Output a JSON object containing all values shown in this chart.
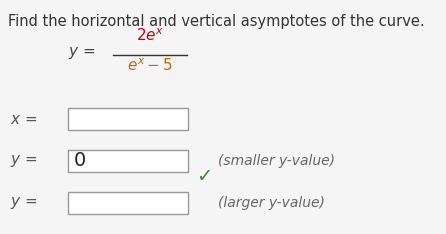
{
  "title": "Find the horizontal and vertical asymptotes of the curve.",
  "title_fontsize": 10.5,
  "title_color": "#333333",
  "bg_color": "#f5f5f5",
  "numerator_color": "#cc0000",
  "denom_e_color": "#cc6600",
  "denom_minus_color": "#cc6600",
  "denom_5_color": "#cc0000",
  "formula_label_color": "#444444",
  "annotation_color": "#666666",
  "checkmark_color": "#3a8c3a",
  "box_edge_color": "#999999",
  "box_fill_color": "#ffffff",
  "label_color": "#555555",
  "box2_value": "0",
  "annotation1": "(smaller y-value)",
  "annotation2": "(larger y-value)"
}
